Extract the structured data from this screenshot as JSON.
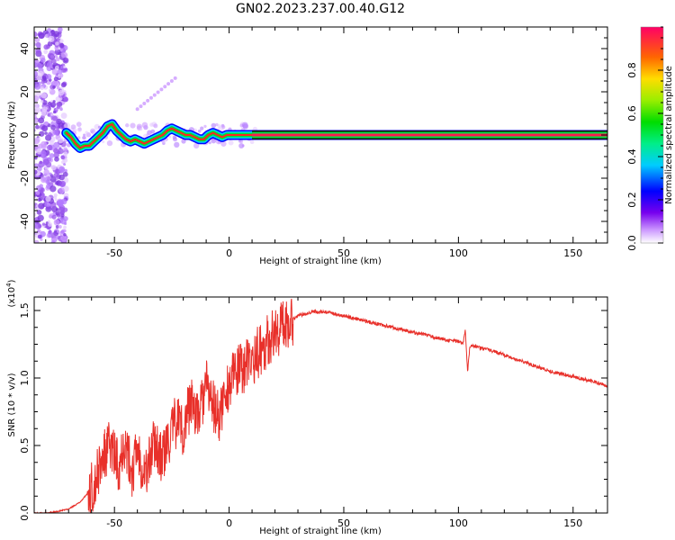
{
  "title": "GN02.2023.237.00.40.G12",
  "chart_data": [
    {
      "type": "heatmap",
      "xlabel": "Height of straight line (km)",
      "ylabel": "Frequency (Hz)",
      "xlim": [
        -85,
        165
      ],
      "ylim": [
        -50,
        50
      ],
      "xticks": [
        -50,
        0,
        50,
        100,
        150
      ],
      "yticks": [
        -40,
        -20,
        0,
        20,
        40
      ],
      "track": [
        [
          -71,
          1
        ],
        [
          -69,
          -1
        ],
        [
          -67,
          -4
        ],
        [
          -65,
          -6
        ],
        [
          -63,
          -5
        ],
        [
          -61,
          -5
        ],
        [
          -59,
          -3
        ],
        [
          -57,
          -1
        ],
        [
          -55,
          1
        ],
        [
          -53,
          4
        ],
        [
          -51,
          5
        ],
        [
          -49,
          2
        ],
        [
          -47,
          0
        ],
        [
          -45,
          -2
        ],
        [
          -43,
          -3
        ],
        [
          -41,
          -2
        ],
        [
          -39,
          -3
        ],
        [
          -37,
          -4
        ],
        [
          -35,
          -3
        ],
        [
          -33,
          -2
        ],
        [
          -31,
          -1
        ],
        [
          -29,
          0
        ],
        [
          -27,
          2
        ],
        [
          -25,
          3
        ],
        [
          -23,
          2
        ],
        [
          -21,
          1
        ],
        [
          -19,
          0
        ],
        [
          -17,
          0
        ],
        [
          -15,
          -1
        ],
        [
          -13,
          -2
        ],
        [
          -11,
          -2
        ],
        [
          -9,
          0
        ],
        [
          -7,
          1
        ],
        [
          -5,
          0
        ],
        [
          -3,
          -1
        ],
        [
          -1,
          0
        ],
        [
          1,
          0
        ],
        [
          3,
          0
        ],
        [
          6,
          0
        ],
        [
          10,
          0
        ],
        [
          165,
          0
        ]
      ],
      "colorbar": {
        "label": "Normalized spectral amplitude",
        "range": [
          0,
          1
        ],
        "ticks": [
          0.0,
          0.2,
          0.4,
          0.6,
          0.8
        ]
      }
    },
    {
      "type": "line",
      "xlabel": "Height of straight line (km)",
      "ylabel": "SNR (10 * v/v)",
      "multiplier": "(x10",
      "multiplier_exp": "4",
      "multiplier_close": ")",
      "xlim": [
        -85,
        165
      ],
      "ylim": [
        0,
        1.6
      ],
      "xticks": [
        -50,
        0,
        50,
        100,
        150
      ],
      "yticks": [
        0.0,
        0.5,
        1.0,
        1.5
      ],
      "series": [
        {
          "color": "#e8302a",
          "x": [
            -85,
            -80,
            -75,
            -70,
            -65,
            -60,
            -57,
            -55,
            -52,
            -50,
            -48,
            -46,
            -44,
            -42,
            -40,
            -38,
            -36,
            -34,
            -32,
            -30,
            -28,
            -26,
            -24,
            -22,
            -20,
            -18,
            -16,
            -14,
            -12,
            -10,
            -8,
            -6,
            -4,
            -2,
            0,
            2,
            4,
            6,
            8,
            10,
            12,
            14,
            16,
            18,
            20,
            22,
            24,
            26,
            28,
            30,
            32,
            34,
            36,
            38,
            40,
            45,
            50,
            55,
            60,
            65,
            70,
            75,
            80,
            85,
            90,
            95,
            100,
            102,
            103,
            104,
            105,
            110,
            115,
            120,
            125,
            130,
            135,
            140,
            145,
            150,
            155,
            160,
            165
          ],
          "y": [
            0.0,
            0.0,
            0.01,
            0.03,
            0.08,
            0.18,
            0.3,
            0.4,
            0.5,
            0.42,
            0.35,
            0.55,
            0.4,
            0.3,
            0.5,
            0.35,
            0.3,
            0.45,
            0.55,
            0.4,
            0.45,
            0.55,
            0.65,
            0.7,
            0.6,
            0.75,
            0.85,
            0.7,
            0.8,
            0.95,
            0.85,
            0.75,
            0.7,
            0.9,
            0.95,
            1.0,
            1.05,
            1.08,
            1.1,
            1.12,
            1.18,
            1.22,
            1.26,
            1.3,
            1.33,
            1.37,
            1.4,
            1.42,
            1.44,
            1.46,
            1.47,
            1.48,
            1.49,
            1.49,
            1.49,
            1.48,
            1.46,
            1.44,
            1.42,
            1.4,
            1.38,
            1.36,
            1.34,
            1.32,
            1.3,
            1.28,
            1.27,
            1.26,
            1.36,
            1.05,
            1.24,
            1.22,
            1.2,
            1.17,
            1.14,
            1.11,
            1.08,
            1.05,
            1.03,
            1.01,
            0.99,
            0.97,
            0.94
          ]
        }
      ]
    }
  ]
}
